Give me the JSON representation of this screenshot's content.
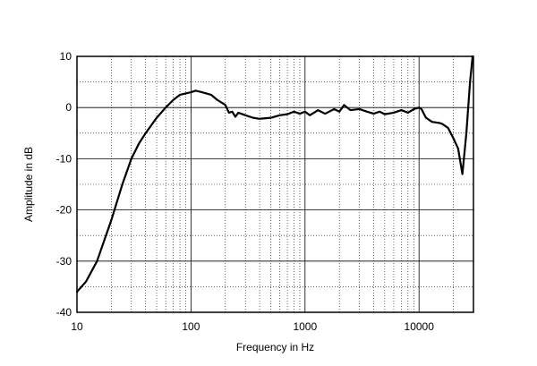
{
  "chart_data": {
    "type": "line",
    "title": "",
    "xlabel": "Frequency in Hz",
    "ylabel": "Amplitude in dB",
    "x_scale": "log",
    "xlim": [
      10,
      30000
    ],
    "ylim": [
      -40,
      10
    ],
    "x_ticks": [
      {
        "value": 10,
        "label": "10"
      },
      {
        "value": 100,
        "label": "100"
      },
      {
        "value": 1000,
        "label": "1000"
      },
      {
        "value": 10000,
        "label": "10000"
      }
    ],
    "y_ticks": [
      {
        "value": 10,
        "label": "10"
      },
      {
        "value": 0,
        "label": "0"
      },
      {
        "value": -10,
        "label": "-10"
      },
      {
        "value": -20,
        "label": "-20"
      },
      {
        "value": -30,
        "label": "-30"
      },
      {
        "value": -40,
        "label": "-40"
      }
    ],
    "grid": true,
    "legend": "none",
    "series": [
      {
        "color": "#000000",
        "points": [
          [
            10,
            -36
          ],
          [
            12,
            -34
          ],
          [
            15,
            -30
          ],
          [
            20,
            -22
          ],
          [
            25,
            -15
          ],
          [
            30,
            -10
          ],
          [
            35,
            -7
          ],
          [
            40,
            -5
          ],
          [
            50,
            -2
          ],
          [
            60,
            0
          ],
          [
            70,
            1.5
          ],
          [
            80,
            2.5
          ],
          [
            100,
            3
          ],
          [
            110,
            3.3
          ],
          [
            125,
            3
          ],
          [
            150,
            2.5
          ],
          [
            170,
            1.5
          ],
          [
            200,
            0.5
          ],
          [
            215,
            -1
          ],
          [
            230,
            -0.8
          ],
          [
            245,
            -1.8
          ],
          [
            260,
            -1
          ],
          [
            300,
            -1.5
          ],
          [
            350,
            -2
          ],
          [
            400,
            -2.2
          ],
          [
            500,
            -2
          ],
          [
            600,
            -1.5
          ],
          [
            700,
            -1.3
          ],
          [
            800,
            -0.8
          ],
          [
            900,
            -1.2
          ],
          [
            1000,
            -0.8
          ],
          [
            1100,
            -1.5
          ],
          [
            1200,
            -1
          ],
          [
            1300,
            -0.5
          ],
          [
            1500,
            -1.2
          ],
          [
            1800,
            -0.3
          ],
          [
            2000,
            -0.8
          ],
          [
            2200,
            0.5
          ],
          [
            2500,
            -0.5
          ],
          [
            3000,
            -0.3
          ],
          [
            3500,
            -0.8
          ],
          [
            4000,
            -1.2
          ],
          [
            4500,
            -0.8
          ],
          [
            5000,
            -1.3
          ],
          [
            6000,
            -1
          ],
          [
            7000,
            -0.5
          ],
          [
            8000,
            -1
          ],
          [
            9000,
            -0.3
          ],
          [
            10000,
            0
          ],
          [
            10500,
            -0.3
          ],
          [
            11500,
            -2
          ],
          [
            13000,
            -2.8
          ],
          [
            15000,
            -3
          ],
          [
            16000,
            -3.2
          ],
          [
            18000,
            -4
          ],
          [
            20000,
            -6
          ],
          [
            22000,
            -8
          ],
          [
            24000,
            -13
          ],
          [
            26000,
            -5
          ],
          [
            28000,
            5
          ],
          [
            29500,
            10
          ]
        ]
      }
    ]
  }
}
